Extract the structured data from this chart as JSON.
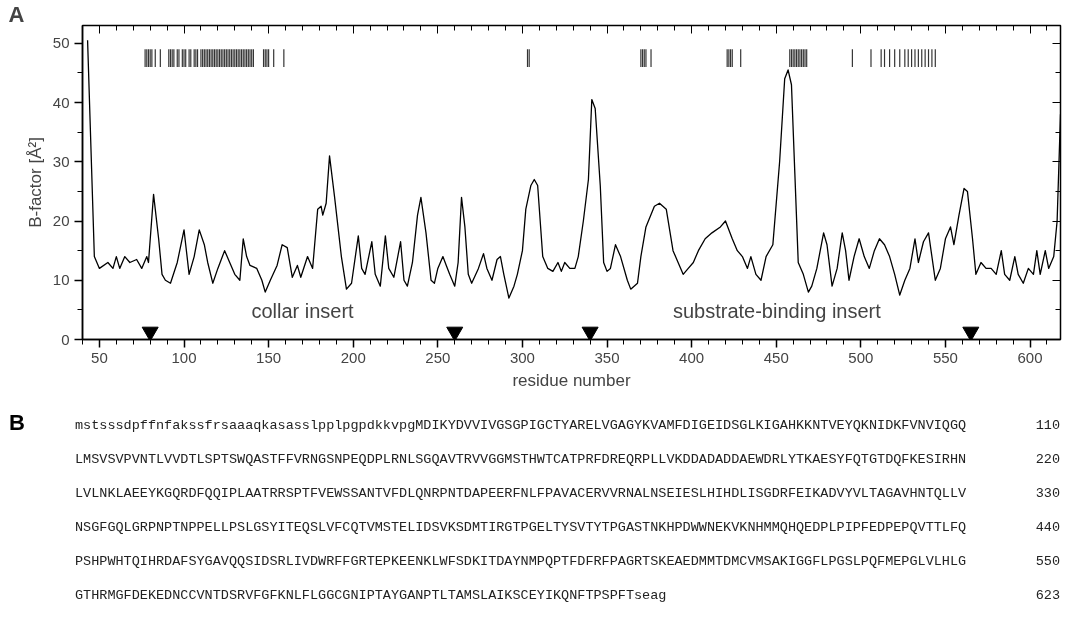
{
  "chart_data": {
    "type": "line",
    "xlabel": "residue number",
    "ylabel": "B-factor [Å²]",
    "xlim": [
      40,
      618
    ],
    "ylim": [
      0,
      53
    ],
    "xticks": [
      50,
      100,
      150,
      200,
      250,
      300,
      350,
      400,
      450,
      500,
      550,
      600
    ],
    "yticks": [
      0,
      10,
      20,
      30,
      40,
      50
    ],
    "grid": false,
    "series": [
      {
        "color": "#000000",
        "x": [
          43,
          47,
          50,
          55,
          58,
          60,
          62,
          65,
          68,
          72,
          75,
          78,
          79,
          82,
          85,
          87,
          89,
          92,
          96,
          100,
          101,
          103,
          106,
          109,
          112,
          114,
          117,
          120,
          124,
          127,
          130,
          133,
          135,
          137,
          139,
          143,
          146,
          148,
          151,
          155,
          158,
          161,
          164,
          167,
          169,
          173,
          176,
          179,
          181,
          182,
          184,
          186,
          189,
          193,
          196,
          199,
          203,
          205,
          207,
          211,
          213,
          216,
          219,
          221,
          224,
          228,
          230,
          232,
          235,
          238,
          240,
          243,
          246,
          248,
          250,
          253,
          255,
          257,
          260,
          262,
          264,
          266,
          268,
          270,
          274,
          277,
          279,
          282,
          285,
          287,
          289,
          292,
          295,
          297,
          300,
          302,
          305,
          307,
          309,
          312,
          315,
          318,
          321,
          323,
          325,
          328,
          331,
          333,
          336,
          339,
          341,
          343,
          346,
          348,
          350,
          352,
          355,
          358,
          362,
          364,
          366,
          368,
          370,
          373,
          378,
          381,
          385,
          389,
          392,
          395,
          398,
          401,
          404,
          408,
          412,
          417,
          420,
          424,
          427,
          430,
          433,
          435,
          438,
          441,
          444,
          448,
          452,
          455,
          457,
          459,
          461,
          463,
          466,
          469,
          471,
          474,
          478,
          480,
          483,
          486,
          489,
          491,
          493,
          496,
          499,
          502,
          505,
          508,
          511,
          514,
          517,
          520,
          523,
          526,
          529,
          532,
          534,
          537,
          540,
          544,
          547,
          550,
          553,
          555,
          558,
          561,
          563,
          566,
          568,
          571,
          574,
          577,
          580,
          583,
          585,
          588,
          591,
          593,
          596,
          599,
          602,
          604,
          606,
          609,
          611,
          614,
          616,
          618
        ],
        "values": [
          50.5,
          14,
          12,
          13,
          12,
          14,
          12,
          14,
          13,
          13.5,
          12,
          14,
          13,
          24.5,
          17,
          11,
          10,
          9.5,
          13,
          18.5,
          16,
          11,
          14,
          18.5,
          16,
          13,
          9.5,
          12,
          15,
          13,
          11,
          10,
          17,
          14,
          12.5,
          12,
          10,
          8,
          10,
          12.5,
          16,
          15.5,
          10.5,
          12.5,
          10.5,
          14,
          12,
          22,
          22.5,
          21,
          23,
          31,
          24,
          14,
          8.5,
          9.5,
          17.5,
          12,
          11,
          16.5,
          11,
          9,
          17.5,
          12,
          10.5,
          16.5,
          10,
          9,
          13,
          21,
          24,
          18,
          10,
          9.5,
          12,
          14,
          12.5,
          11,
          9,
          13,
          24,
          19,
          11,
          9.5,
          12,
          14.5,
          12,
          10,
          13.5,
          14,
          11,
          7,
          9,
          11,
          15,
          22,
          26,
          27,
          26,
          14,
          12,
          11.5,
          13,
          11.5,
          13,
          12,
          12,
          14,
          20,
          27,
          40.5,
          39,
          26,
          13,
          11.5,
          12,
          16,
          14,
          10,
          8.5,
          9,
          9.5,
          14,
          19,
          22.5,
          23,
          22,
          15,
          13,
          11,
          12,
          13,
          15,
          17,
          18,
          19,
          20,
          17,
          15,
          14,
          12,
          14,
          11,
          10,
          14,
          16,
          30,
          44,
          45.5,
          43,
          28,
          13,
          11,
          8,
          9,
          12,
          18,
          16,
          9,
          12,
          18,
          15,
          10,
          14,
          17,
          14,
          12,
          15,
          17,
          16,
          14,
          11,
          7.5,
          10,
          12,
          17,
          13,
          16.5,
          18,
          10,
          12,
          17,
          19,
          16,
          21,
          25.5,
          25,
          17,
          11,
          13,
          12,
          12,
          11,
          15,
          11,
          10,
          14,
          11,
          9.5,
          12,
          11,
          15,
          11,
          15,
          12,
          14,
          20,
          38
        ]
      },
      {
        "type": "bar",
        "color": "#333333",
        "x": [
          77,
          78,
          79,
          80,
          81,
          83,
          86,
          91,
          92,
          93,
          94,
          96,
          97,
          99,
          100,
          101,
          103,
          104,
          106,
          107,
          108,
          110,
          111,
          112,
          113,
          114,
          115,
          116,
          117,
          118,
          119,
          120,
          121,
          122,
          123,
          124,
          125,
          126,
          127,
          128,
          129,
          130,
          131,
          132,
          133,
          134,
          135,
          136,
          137,
          138,
          139,
          140,
          141,
          147,
          148,
          149,
          150,
          153,
          159,
          303,
          304,
          370,
          371,
          372,
          373,
          376,
          421,
          422,
          423,
          424,
          429,
          458,
          459,
          460,
          461,
          462,
          463,
          464,
          465,
          466,
          467,
          468,
          495,
          506,
          512,
          514,
          517,
          520,
          523,
          526,
          528,
          530,
          532,
          534,
          536,
          538,
          540,
          542,
          544
        ],
        "base": [
          46,
          46,
          46,
          46,
          46,
          46,
          46,
          46,
          46,
          46,
          46,
          46,
          46,
          46,
          46,
          46,
          46,
          46,
          46,
          46,
          46,
          46,
          46,
          46,
          46,
          46,
          46,
          46,
          46,
          46,
          46,
          46,
          46,
          46,
          46,
          46,
          46,
          46,
          46,
          46,
          46,
          46,
          46,
          46,
          46,
          46,
          46,
          46,
          46,
          46,
          46,
          46,
          46,
          46,
          46,
          46,
          46,
          46,
          46,
          46,
          46,
          46,
          46,
          46,
          46,
          46,
          46,
          46,
          46,
          46,
          46,
          46,
          46,
          46,
          46,
          46,
          46,
          46,
          46,
          46,
          46,
          46,
          46,
          46,
          46,
          46,
          46,
          46,
          46,
          46,
          46,
          46,
          46,
          46,
          46,
          46,
          46,
          46,
          46
        ],
        "values": [
          3,
          3,
          3,
          3,
          3,
          3,
          3,
          3,
          3,
          3,
          3,
          3,
          3,
          3,
          3,
          3,
          3,
          3,
          3,
          3,
          3,
          3,
          3,
          3,
          3,
          3,
          3,
          3,
          3,
          3,
          3,
          3,
          3,
          3,
          3,
          3,
          3,
          3,
          3,
          3,
          3,
          3,
          3,
          3,
          3,
          3,
          3,
          3,
          3,
          3,
          3,
          3,
          3,
          3,
          3,
          3,
          3,
          3,
          3,
          3,
          3,
          3,
          3,
          3,
          3,
          3,
          3,
          3,
          3,
          3,
          3,
          3,
          3,
          3,
          3,
          3,
          3,
          3,
          3,
          3,
          3,
          3,
          3,
          3,
          3,
          3,
          3,
          3,
          3,
          3,
          3,
          3,
          3,
          3,
          3,
          3,
          3,
          3,
          3
        ]
      },
      {
        "type": "scatter",
        "color": "#000000",
        "marker": "triangle",
        "x": [
          80,
          260,
          340,
          565
        ],
        "values": [
          1.3,
          1.3,
          1.3,
          1.3
        ]
      }
    ],
    "annotations": [
      "A",
      "collar insert",
      "substrate-binding insert",
      "B",
      "mstsssdpffnfakssfrsaaaqkasasslpplpgpdkkvpgMDIKYDVVIVGSGPIGCTYARELVGAGYKVAMFDIGEIDSGLKIGAHKKNTVEYQKNIDKFVNVIQGQ",
      "110",
      "LMSVSVPVNTLVVDTLSPTSWQASTFFVRNGSNPEQDPLRNLSGQAVTRVVGGMSTHWTCATPRFDREQRPLLVKDDADADDAEWDRLYTKAESYFQTGTDQFKESIRHN",
      "220",
      "LVLNKLAEEYKGQRDFQQIPLAATRRSPTFVEWSSANTVFDLQNRPNTDAPEERFNLFPAVACERVVRNALNSEIESLHIHDLISGDRFEIKADVYVLTAGAVHNTQLLV",
      "330",
      "NSGFGQLGRPNPTNPPELLPSLGSYITEQSLVFCQTVMSTELIDSVKSDMTIRGTPGELTYSVTYTPGASTNKHPDWWNEKVKNHMMQHQEDPLPIPFEDPEPQVTTLFQ",
      "440",
      "PSHPWHTQIHRDAFSYGAVQQSIDSRLIVDWRFFGRTEPKEENKLWFSDKITDAYNMPQPTFDFRFPAGRTSKEAEDMMTDMCVMSAKIGGFLPGSLPQFMEPGLVLHLG",
      "550",
      "GTHRMGFDEKEDNCCVNTDSRVFGFKNLFLGGCGNIPTAYGANPTLTAMSLAIKSCEYIKQNFTPSPFTseag",
      "623"
    ]
  }
}
